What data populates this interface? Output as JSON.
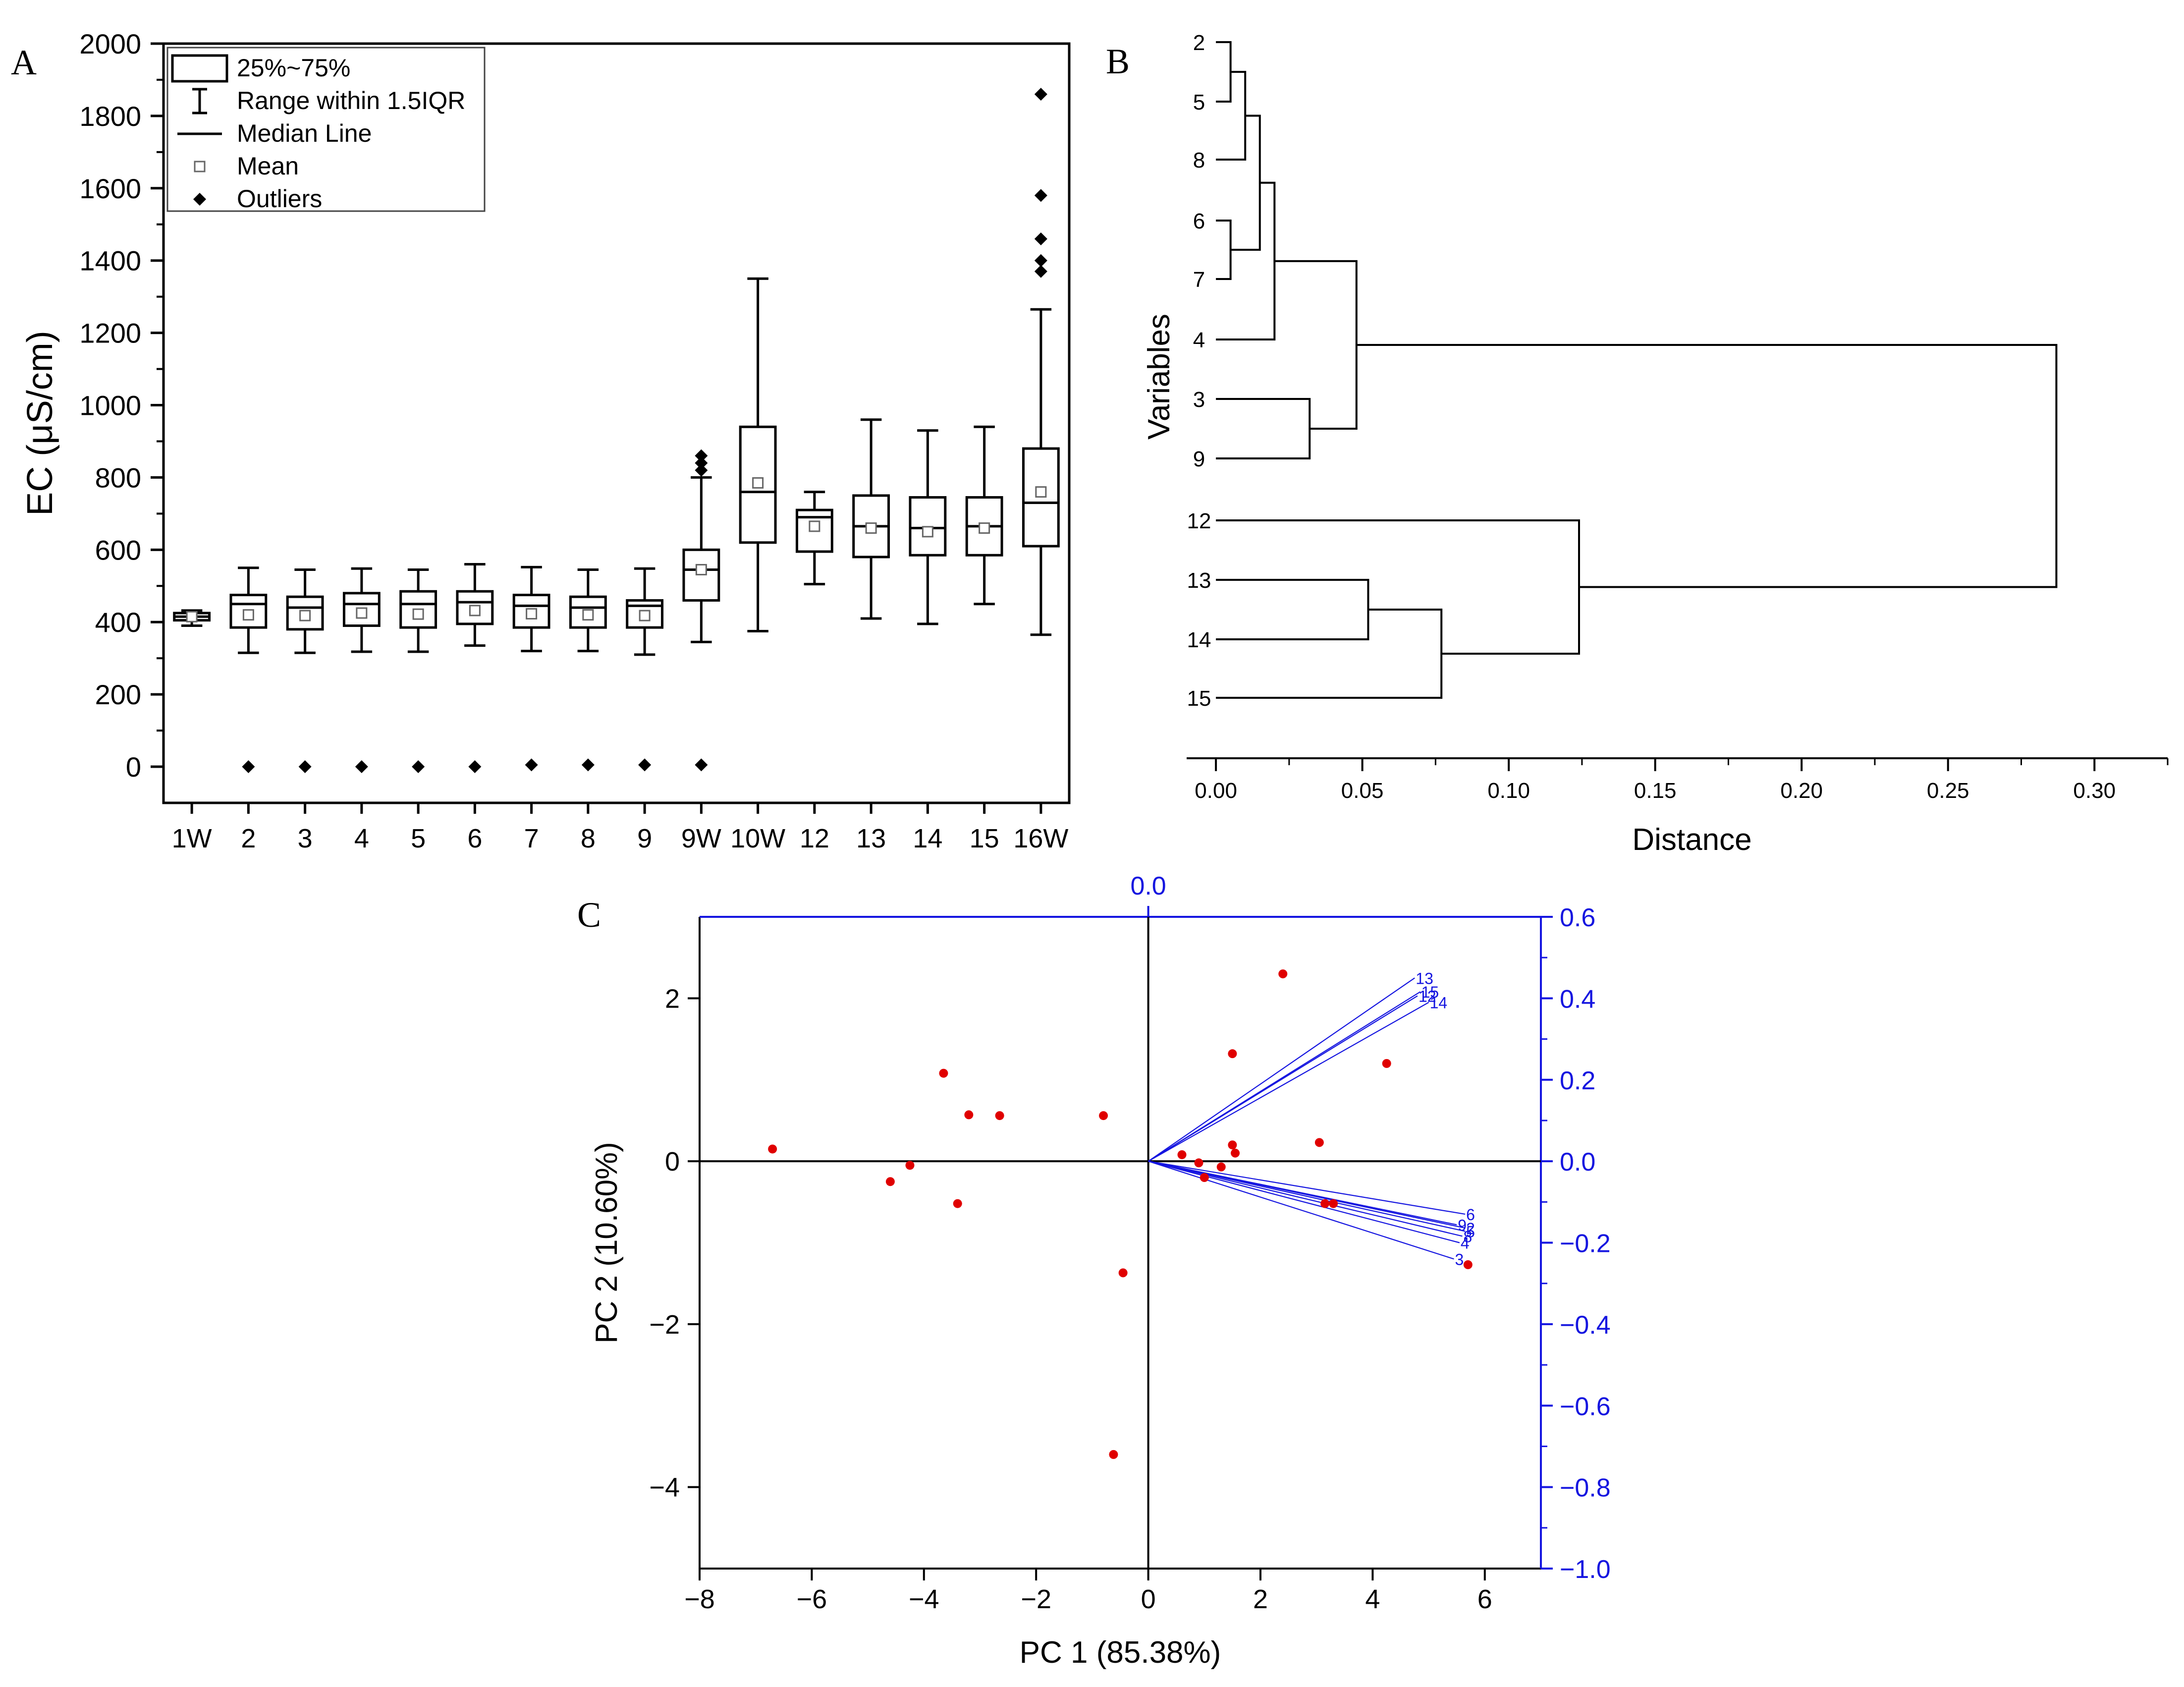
{
  "panels": {
    "a": "A",
    "b": "B",
    "c": "C"
  },
  "chart_data": [
    {
      "type": "box",
      "panel": "A",
      "ylabel": "EC (μS/cm)",
      "ylim": [
        -100,
        2000
      ],
      "yticks": [
        0,
        200,
        400,
        600,
        800,
        1000,
        1200,
        1400,
        1600,
        1800,
        2000
      ],
      "legend": {
        "position": "top-left",
        "items": [
          "25%~75%",
          "Range within 1.5IQR",
          "Median Line",
          "Mean",
          "Outliers"
        ]
      },
      "categories": [
        "1W",
        "2",
        "3",
        "4",
        "5",
        "6",
        "7",
        "8",
        "9",
        "9W",
        "10W",
        "12",
        "13",
        "14",
        "15",
        "16W"
      ],
      "boxes": [
        {
          "q1": 405,
          "med": 415,
          "q3": 425,
          "wlo": 390,
          "whi": 432,
          "mean": 415,
          "outliers": []
        },
        {
          "q1": 385,
          "med": 450,
          "q3": 475,
          "wlo": 315,
          "whi": 550,
          "mean": 420,
          "outliers": [
            0
          ]
        },
        {
          "q1": 380,
          "med": 440,
          "q3": 470,
          "wlo": 315,
          "whi": 545,
          "mean": 418,
          "outliers": [
            0
          ]
        },
        {
          "q1": 390,
          "med": 450,
          "q3": 480,
          "wlo": 318,
          "whi": 548,
          "mean": 425,
          "outliers": [
            0
          ]
        },
        {
          "q1": 385,
          "med": 450,
          "q3": 485,
          "wlo": 318,
          "whi": 545,
          "mean": 422,
          "outliers": [
            0
          ]
        },
        {
          "q1": 395,
          "med": 455,
          "q3": 485,
          "wlo": 335,
          "whi": 560,
          "mean": 432,
          "outliers": [
            0
          ]
        },
        {
          "q1": 385,
          "med": 445,
          "q3": 475,
          "wlo": 320,
          "whi": 552,
          "mean": 423,
          "outliers": [
            5
          ]
        },
        {
          "q1": 385,
          "med": 440,
          "q3": 470,
          "wlo": 320,
          "whi": 545,
          "mean": 420,
          "outliers": [
            5
          ]
        },
        {
          "q1": 385,
          "med": 445,
          "q3": 460,
          "wlo": 310,
          "whi": 548,
          "mean": 418,
          "outliers": [
            5
          ]
        },
        {
          "q1": 460,
          "med": 545,
          "q3": 600,
          "wlo": 345,
          "whi": 800,
          "mean": 545,
          "outliers": [
            5,
            820,
            840,
            860
          ]
        },
        {
          "q1": 620,
          "med": 760,
          "q3": 940,
          "wlo": 375,
          "whi": 1350,
          "mean": 785,
          "outliers": []
        },
        {
          "q1": 595,
          "med": 690,
          "q3": 710,
          "wlo": 505,
          "whi": 760,
          "mean": 665,
          "outliers": []
        },
        {
          "q1": 580,
          "med": 665,
          "q3": 750,
          "wlo": 410,
          "whi": 960,
          "mean": 660,
          "outliers": []
        },
        {
          "q1": 585,
          "med": 660,
          "q3": 745,
          "wlo": 395,
          "whi": 930,
          "mean": 650,
          "outliers": []
        },
        {
          "q1": 585,
          "med": 665,
          "q3": 745,
          "wlo": 450,
          "whi": 940,
          "mean": 660,
          "outliers": []
        },
        {
          "q1": 610,
          "med": 730,
          "q3": 880,
          "wlo": 365,
          "whi": 1265,
          "mean": 760,
          "outliers": [
            1370,
            1400,
            1460,
            1580,
            1860
          ]
        }
      ]
    },
    {
      "type": "dendrogram",
      "panel": "B",
      "xlabel": "Distance",
      "ylabel": "Variables",
      "xlim": [
        -0.01,
        0.325
      ],
      "xticks": [
        "0.00",
        "0.05",
        "0.10",
        "0.15",
        "0.20",
        "0.25",
        "0.30"
      ],
      "leaves": [
        "2",
        "5",
        "8",
        "6",
        "7",
        "4",
        "3",
        "9",
        "12",
        "13",
        "14",
        "15"
      ],
      "merges": [
        {
          "a": "2",
          "b": "5",
          "dist": 0.005,
          "id": "m1"
        },
        {
          "a": "m1",
          "b": "8",
          "dist": 0.01,
          "id": "m2"
        },
        {
          "a": "6",
          "b": "7",
          "dist": 0.005,
          "id": "m3"
        },
        {
          "a": "m2",
          "b": "m3",
          "dist": 0.015,
          "id": "m4"
        },
        {
          "a": "m4",
          "b": "4",
          "dist": 0.02,
          "id": "m5"
        },
        {
          "a": "3",
          "b": "9",
          "dist": 0.032,
          "id": "m6"
        },
        {
          "a": "m5",
          "b": "m6",
          "dist": 0.048,
          "id": "m7"
        },
        {
          "a": "13",
          "b": "14",
          "dist": 0.052,
          "id": "m8"
        },
        {
          "a": "m8",
          "b": "15",
          "dist": 0.077,
          "id": "m9"
        },
        {
          "a": "12",
          "b": "m9",
          "dist": 0.124,
          "id": "m10"
        },
        {
          "a": "m7",
          "b": "m10",
          "dist": 0.287,
          "id": "m11"
        }
      ]
    },
    {
      "type": "biplot",
      "panel": "C",
      "xlabel": "PC 1 (85.38%)",
      "ylabel": "PC 2 (10.60%)",
      "top_axis_label": "0.0",
      "xlim": [
        -8,
        7
      ],
      "ylim": [
        -5,
        3
      ],
      "xticks": [
        -8,
        -6,
        -4,
        -2,
        0,
        2,
        4,
        6
      ],
      "yticks": [
        -4,
        -2,
        0,
        2
      ],
      "right_ylim": [
        -1.0,
        0.6
      ],
      "right_yticks": [
        "0.6",
        "0.4",
        "0.2",
        "0.0",
        "-0.2",
        "-0.4",
        "-0.6",
        "-0.8",
        "-1.0"
      ],
      "scores": [
        [
          -6.7,
          0.15
        ],
        [
          -4.6,
          -0.25
        ],
        [
          -4.25,
          -0.05
        ],
        [
          -3.65,
          1.08
        ],
        [
          -3.4,
          -0.52
        ],
        [
          -3.2,
          0.57
        ],
        [
          -2.65,
          0.56
        ],
        [
          -0.8,
          0.56
        ],
        [
          -0.45,
          -1.37
        ],
        [
          -0.62,
          -3.6
        ],
        [
          0.6,
          0.08
        ],
        [
          0.9,
          -0.02
        ],
        [
          1.0,
          -0.2
        ],
        [
          1.3,
          -0.07
        ],
        [
          1.5,
          0.2
        ],
        [
          1.55,
          0.1
        ],
        [
          1.5,
          1.32
        ],
        [
          2.4,
          2.3
        ],
        [
          3.05,
          0.23
        ],
        [
          3.15,
          -0.52
        ],
        [
          3.3,
          -0.52
        ],
        [
          4.25,
          1.2
        ],
        [
          5.7,
          -1.27
        ]
      ],
      "loadings": [
        {
          "label": "13",
          "x": 4.75,
          "y": 2.25
        },
        {
          "label": "15",
          "x": 4.85,
          "y": 2.08
        },
        {
          "label": "12",
          "x": 4.8,
          "y": 2.03
        },
        {
          "label": "14",
          "x": 5.0,
          "y": 1.95
        },
        {
          "label": "6",
          "x": 5.65,
          "y": -0.65
        },
        {
          "label": "9",
          "x": 5.5,
          "y": -0.78
        },
        {
          "label": "2",
          "x": 5.65,
          "y": -0.82
        },
        {
          "label": "5",
          "x": 5.65,
          "y": -0.86
        },
        {
          "label": "8",
          "x": 5.6,
          "y": -0.92
        },
        {
          "label": "4",
          "x": 5.55,
          "y": -1.0
        },
        {
          "label": "3",
          "x": 5.45,
          "y": -1.2
        }
      ]
    }
  ]
}
